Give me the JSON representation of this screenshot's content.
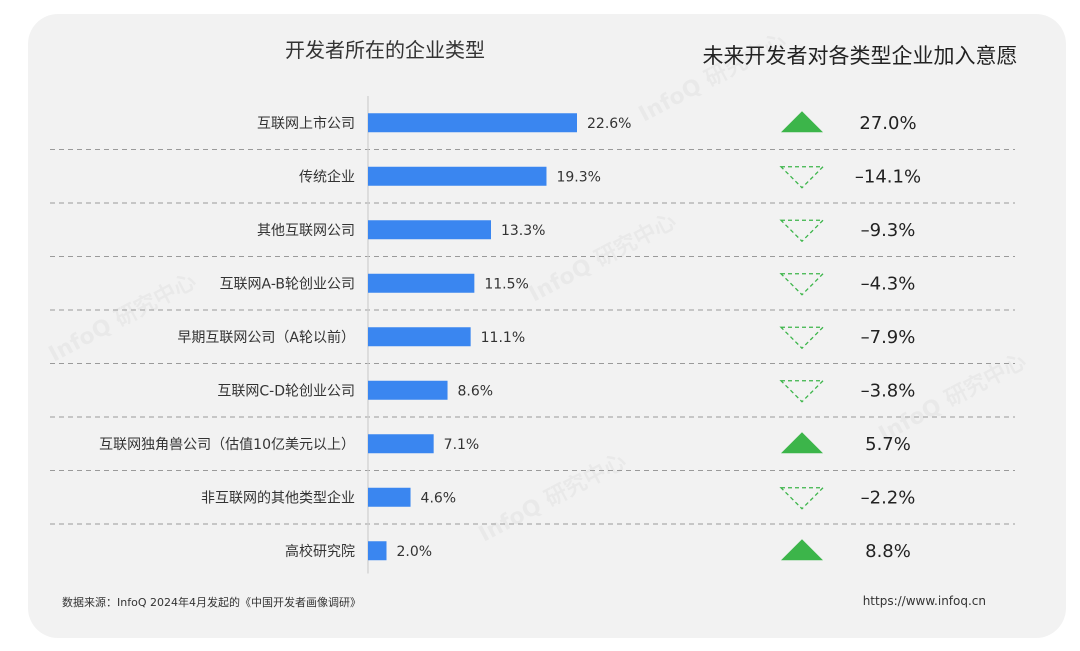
{
  "left_title": "开发者所在的企业类型",
  "right_title": "未来开发者对各类型企业加入意愿",
  "footer": {
    "source": "数据来源：InfoQ 2024年4月发起的《中国开发者画像调研》",
    "url": "https://www.infoq.cn"
  },
  "watermark": "InfoQ 研究中心",
  "colors": {
    "bar": "#3a86f0",
    "up": "#3cb54a",
    "down": "#3cb54a",
    "divider": "#9a9a9a"
  },
  "chart_data": [
    {
      "type": "bar",
      "title": "开发者所在的企业类型",
      "orientation": "horizontal",
      "categories": [
        "互联网上市公司",
        "传统企业",
        "其他互联网公司",
        "互联网A-B轮创业公司",
        "早期互联网公司（A轮以前）",
        "互联网C-D轮创业公司",
        "互联网独角兽公司（估值10亿美元以上）",
        "非互联网的其他类型企业",
        "高校研究院"
      ],
      "values": [
        22.6,
        19.3,
        13.3,
        11.5,
        11.1,
        8.6,
        7.1,
        4.6,
        2.0
      ],
      "labels": [
        "22.6%",
        "19.3%",
        "13.3%",
        "11.5%",
        "11.1%",
        "8.6%",
        "7.1%",
        "4.6%",
        "2.0%"
      ],
      "unit": "%"
    },
    {
      "type": "table",
      "title": "未来开发者对各类型企业加入意愿",
      "categories": [
        "互联网上市公司",
        "传统企业",
        "其他互联网公司",
        "互联网A-B轮创业公司",
        "早期互联网公司（A轮以前）",
        "互联网C-D轮创业公司",
        "互联网独角兽公司（估值10亿美元以上）",
        "非互联网的其他类型企业",
        "高校研究院"
      ],
      "values": [
        27.0,
        -14.1,
        -9.3,
        -4.3,
        -7.9,
        -3.8,
        5.7,
        -2.2,
        8.8
      ],
      "labels": [
        "27.0%",
        "–14.1%",
        "–9.3%",
        "–4.3%",
        "–7.9%",
        "–3.8%",
        "5.7%",
        "–2.2%",
        "8.8%"
      ],
      "direction": [
        "up",
        "down",
        "down",
        "down",
        "down",
        "down",
        "up",
        "down",
        "up"
      ]
    }
  ]
}
